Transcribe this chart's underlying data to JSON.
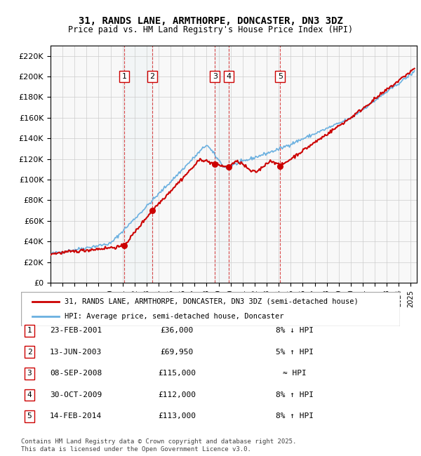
{
  "title_line1": "31, RANDS LANE, ARMTHORPE, DONCASTER, DN3 3DZ",
  "title_line2": "Price paid vs. HM Land Registry's House Price Index (HPI)",
  "ylabel": "",
  "xlabel": "",
  "legend_line1": "31, RANDS LANE, ARMTHORPE, DONCASTER, DN3 3DZ (semi-detached house)",
  "legend_line2": "HPI: Average price, semi-detached house, Doncaster",
  "property_color": "#cc0000",
  "hpi_color": "#6ab0e0",
  "transactions": [
    {
      "num": 1,
      "date": "23-FEB-2001",
      "price": 36000,
      "year": 2001.13,
      "note": "8% ↓ HPI"
    },
    {
      "num": 2,
      "date": "13-JUN-2003",
      "price": 69950,
      "year": 2003.45,
      "note": "5% ↑ HPI"
    },
    {
      "num": 3,
      "date": "08-SEP-2008",
      "price": 115000,
      "year": 2008.69,
      "note": "≈ HPI"
    },
    {
      "num": 4,
      "date": "30-OCT-2009",
      "price": 112000,
      "year": 2009.83,
      "note": "8% ↑ HPI"
    },
    {
      "num": 5,
      "date": "14-FEB-2014",
      "price": 113000,
      "year": 2014.12,
      "note": "8% ↑ HPI"
    }
  ],
  "table_rows": [
    {
      "num": 1,
      "date": "23-FEB-2001",
      "price": "£36,000",
      "note": "8% ↓ HPI"
    },
    {
      "num": 2,
      "date": "13-JUN-2003",
      "price": "£69,950",
      "note": "5% ↑ HPI"
    },
    {
      "num": 3,
      "date": "08-SEP-2008",
      "price": "£115,000",
      "note": "≈ HPI"
    },
    {
      "num": 4,
      "date": "30-OCT-2009",
      "price": "£112,000",
      "note": "8% ↑ HPI"
    },
    {
      "num": 5,
      "date": "14-FEB-2014",
      "price": "£113,000",
      "note": "8% ↑ HPI"
    }
  ],
  "footnote": "Contains HM Land Registry data © Crown copyright and database right 2025.\nThis data is licensed under the Open Government Licence v3.0.",
  "ylim": [
    0,
    230000
  ],
  "yticks": [
    0,
    20000,
    40000,
    60000,
    80000,
    100000,
    120000,
    140000,
    160000,
    180000,
    200000,
    220000
  ],
  "xlim_start": 1995,
  "xlim_end": 2025.5,
  "background_color": "#ffffff",
  "grid_color": "#cccccc"
}
